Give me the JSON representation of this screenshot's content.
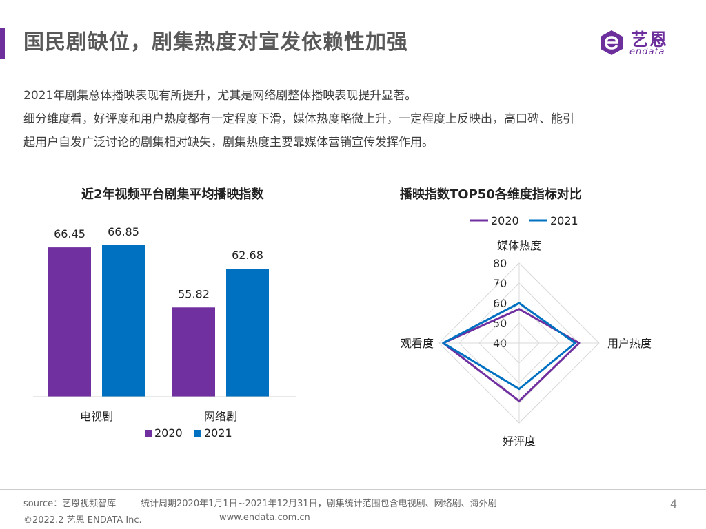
{
  "header": {
    "title": "国民剧缺位，剧集热度对宣发依赖性加强"
  },
  "logo": {
    "cn": "艺恩",
    "en": "endata"
  },
  "intro": {
    "line1": "2021年剧集总体播映表现有所提升，尤其是网络剧整体播映表现提升显著。",
    "line2": "细分维度看，好评度和用户热度都有一定程度下滑，媒体热度略微上升，一定程度上反映出，高口碑、能引",
    "line3": "起用户自发广泛讨论的剧集相对缺失，剧集热度主要靠媒体营销宣传发挥作用。"
  },
  "colors": {
    "series2020": "#7030a0",
    "series2021": "#0070c0",
    "accent": "#6d2f9c"
  },
  "chart_data": [
    {
      "type": "bar",
      "title": "近2年视频平台剧集平均播映指数",
      "categories": [
        "电视剧",
        "网络剧"
      ],
      "series": [
        {
          "name": "2020",
          "values": [
            66.45,
            55.82
          ]
        },
        {
          "name": "2021",
          "values": [
            66.85,
            62.68
          ]
        }
      ],
      "value_labels": [
        [
          "66.45",
          "55.82"
        ],
        [
          "66.85",
          "62.68"
        ]
      ],
      "ylim": [
        40,
        70
      ],
      "legend": "bottom"
    },
    {
      "type": "radar",
      "title": "播映指数TOP50各维度指标对比",
      "axes": [
        "媒体热度",
        "用户热度",
        "好评度",
        "观看度"
      ],
      "ticks": [
        "40",
        "50",
        "60",
        "70",
        "80"
      ],
      "range": [
        40,
        80
      ],
      "series": [
        {
          "name": "2020",
          "values": [
            57,
            70,
            69,
            78
          ]
        },
        {
          "name": "2021",
          "values": [
            60,
            68,
            63,
            78
          ]
        }
      ],
      "legend": "top"
    }
  ],
  "footer": {
    "source": "source：艺恩视频智库",
    "period": "统计周期2020年1月1日~2021年12月31日，剧集统计范围包含电视剧、网络剧、海外剧",
    "copyright": "©2022.2 艺恩 ENDATA Inc.",
    "website": "www.endata.com.cn",
    "page": "4"
  }
}
